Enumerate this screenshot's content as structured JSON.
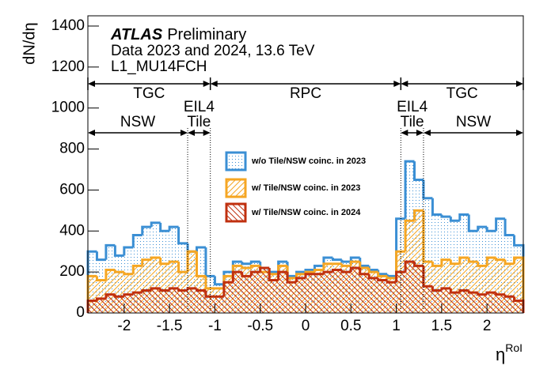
{
  "chart_data": {
    "type": "histogram",
    "xlabel": "η",
    "xlabel_sup": "RoI",
    "ylabel": "dN/dη",
    "xlim": [
      -2.4,
      2.4
    ],
    "ylim": [
      0,
      1450
    ],
    "xticks": [
      -2,
      -1.5,
      -1,
      -0.5,
      0,
      0.5,
      1,
      1.5,
      2
    ],
    "yticks": [
      0,
      200,
      400,
      600,
      800,
      1000,
      1200,
      1400
    ],
    "bins": [
      -2.4,
      -2.3,
      -2.2,
      -2.1,
      -2.0,
      -1.9,
      -1.8,
      -1.7,
      -1.6,
      -1.5,
      -1.4,
      -1.3,
      -1.2,
      -1.1,
      -1.0,
      -0.9,
      -0.8,
      -0.7,
      -0.6,
      -0.5,
      -0.4,
      -0.3,
      -0.2,
      -0.1,
      0,
      0.1,
      0.2,
      0.3,
      0.4,
      0.5,
      0.6,
      0.7,
      0.8,
      0.9,
      1.0,
      1.1,
      1.2,
      1.3,
      1.4,
      1.5,
      1.6,
      1.7,
      1.8,
      1.9,
      2.0,
      2.1,
      2.2,
      2.3,
      2.4
    ],
    "series": [
      {
        "name": "w/o Tile/NSW coinc. in 2023",
        "color": "#3b8fd4",
        "pattern": "dots",
        "values": [
          300,
          260,
          330,
          280,
          320,
          380,
          420,
          440,
          400,
          420,
          340,
          300,
          320,
          180,
          140,
          200,
          250,
          240,
          250,
          220,
          200,
          250,
          180,
          200,
          210,
          230,
          270,
          260,
          250,
          270,
          230,
          210,
          190,
          180,
          460,
          740,
          650,
          560,
          480,
          470,
          450,
          480,
          400,
          420,
          400,
          460,
          380,
          330
        ]
      },
      {
        "name": "w/ Tile/NSW coinc. in 2023",
        "color": "#f5a623",
        "pattern": "hatch-right",
        "values": [
          180,
          160,
          210,
          200,
          190,
          230,
          260,
          270,
          240,
          250,
          200,
          300,
          180,
          120,
          120,
          180,
          230,
          220,
          230,
          200,
          190,
          230,
          170,
          190,
          200,
          210,
          240,
          240,
          230,
          250,
          220,
          200,
          180,
          170,
          300,
          450,
          500,
          250,
          230,
          260,
          240,
          270,
          250,
          230,
          270,
          260,
          240,
          270
        ]
      },
      {
        "name": "w/ Tile/NSW coinc. in 2024",
        "color": "#c0300f",
        "pattern": "hatch-left",
        "values": [
          60,
          70,
          90,
          80,
          90,
          100,
          110,
          120,
          110,
          120,
          110,
          120,
          110,
          80,
          80,
          150,
          200,
          180,
          200,
          220,
          160,
          200,
          150,
          170,
          190,
          190,
          200,
          210,
          200,
          220,
          190,
          170,
          160,
          150,
          200,
          250,
          230,
          130,
          110,
          120,
          100,
          110,
          100,
          90,
          100,
          90,
          80,
          60
        ]
      }
    ],
    "boundaries": [
      -1.3,
      -1.05,
      1.05,
      1.3
    ],
    "atlas": "ATLAS",
    "atlas_status": "Preliminary",
    "annotations": [
      "Data 2023 and 2024, 13.6 TeV",
      "L1_MU14FCH"
    ],
    "regions": [
      "TGC",
      "RPC",
      "TGC",
      "EIL4",
      "Tile",
      "NSW",
      "EIL4",
      "Tile",
      "NSW"
    ]
  }
}
